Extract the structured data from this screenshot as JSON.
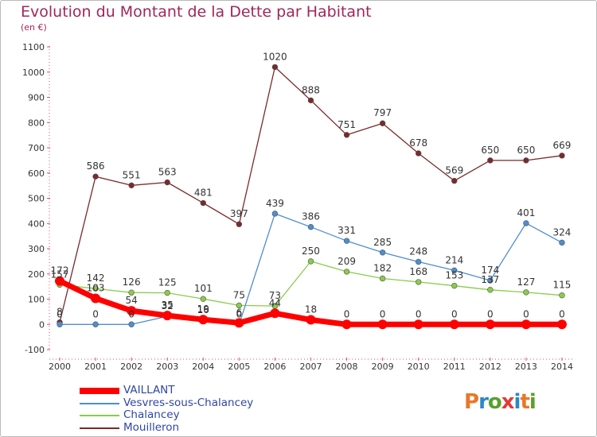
{
  "title": "Evolution du Montant de la Dette par Habitant",
  "subtitle": "(en €)",
  "logo": {
    "text": "Proxiti",
    "colors": [
      "#e8782a",
      "#2a88c8",
      "#5aa02a",
      "#e23a3a",
      "#2a88c8",
      "#e8782a",
      "#5aa02a"
    ]
  },
  "chart_data": {
    "type": "line",
    "x": [
      "2000",
      "2001",
      "2002",
      "2003",
      "2004",
      "2005",
      "2006",
      "2007",
      "2008",
      "2009",
      "2010",
      "2011",
      "2012",
      "2013",
      "2014"
    ],
    "ylim": [
      -100,
      1100
    ],
    "yticks": [
      "-100",
      "0",
      "100",
      "200",
      "300",
      "400",
      "500",
      "600",
      "700",
      "800",
      "900",
      "1000",
      "1100"
    ],
    "grid": false,
    "legend_position": "bottom-left",
    "series": [
      {
        "name": "VAILLANT",
        "color": "#ff0000",
        "width": 7,
        "values": [
          172,
          103,
          54,
          35,
          19,
          6,
          44,
          18,
          0,
          0,
          0,
          0,
          0,
          0,
          0
        ],
        "labels": [
          "172",
          "103",
          "54",
          "35",
          "19",
          "6",
          "44",
          "18",
          "0",
          "0",
          "0",
          "0",
          "0",
          "0",
          "0"
        ]
      },
      {
        "name": "Vesvres-sous-Chalancey",
        "color": "#4d8ecf",
        "width": 1.3,
        "values": [
          0,
          0,
          0,
          32,
          16,
          0,
          439,
          386,
          331,
          285,
          248,
          214,
          174,
          401,
          324
        ],
        "labels": [
          "0",
          "0",
          "0",
          "32",
          "16",
          "0",
          "439",
          "386",
          "331",
          "285",
          "248",
          "214",
          "174",
          "401",
          "324"
        ]
      },
      {
        "name": "Chalancey",
        "color": "#8acb4a",
        "width": 1.3,
        "values": [
          157,
          142,
          126,
          125,
          101,
          75,
          73,
          250,
          209,
          182,
          168,
          153,
          137,
          127,
          115
        ],
        "labels": [
          "157",
          "142",
          "126",
          "125",
          "101",
          "75",
          "73",
          "250",
          "209",
          "182",
          "168",
          "153",
          "137",
          "127",
          "115"
        ]
      },
      {
        "name": "Mouilleron",
        "color": "#7a2a2a",
        "width": 1.3,
        "values": [
          8,
          586,
          551,
          563,
          481,
          397,
          1020,
          888,
          751,
          797,
          678,
          569,
          650,
          650,
          669
        ],
        "labels": [
          "8",
          "586",
          "551",
          "563",
          "481",
          "397",
          "1020",
          "888",
          "751",
          "797",
          "678",
          "569",
          "650",
          "650",
          "669"
        ]
      }
    ]
  }
}
